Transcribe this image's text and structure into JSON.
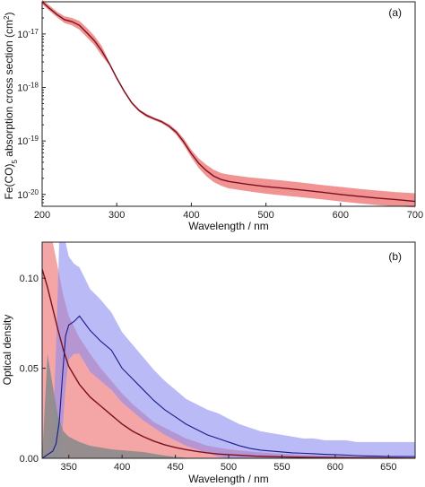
{
  "chart_data": [
    {
      "type": "line",
      "panel_label": "(a)",
      "xlabel": "Wavelength / nm",
      "ylabel": "Fe(CO)5 absorption cross section (cm2)",
      "xlim": [
        200,
        700
      ],
      "ylim": [
        6e-21,
        4e-17
      ],
      "y_scale": "log",
      "x_ticks": [
        200,
        300,
        400,
        500,
        600,
        700
      ],
      "x_tick_labels": [
        "200",
        "300",
        "400",
        "500",
        "600",
        "700"
      ],
      "y_ticks": [
        1e-17,
        1e-18,
        1e-19,
        1e-20
      ],
      "y_tick_labels": [
        "10-17",
        "10-18",
        "10-19",
        "10-20"
      ],
      "colors": {
        "line": "#7a0f1e",
        "band": "#f08080"
      },
      "series": [
        {
          "x": [
            200,
            210,
            220,
            230,
            240,
            250,
            260,
            270,
            280,
            290,
            300,
            310,
            320,
            330,
            340,
            350,
            360,
            370,
            380,
            390,
            400,
            410,
            420,
            430,
            440,
            450,
            475,
            500,
            525,
            550,
            575,
            600,
            625,
            650,
            675,
            700
          ],
          "y": [
            4e-17,
            3e-17,
            2.3e-17,
            1.85e-17,
            1.7e-17,
            1.45e-17,
            1.05e-17,
            7.5e-18,
            4.8e-18,
            2.8e-18,
            1.5e-18,
            8.5e-19,
            5.2e-19,
            3.7e-19,
            3e-19,
            2.6e-19,
            2.3e-19,
            1.9e-19,
            1.45e-19,
            9.5e-20,
            5.8e-20,
            3.8e-20,
            2.8e-20,
            2.2e-20,
            1.9e-20,
            1.75e-20,
            1.55e-20,
            1.4e-20,
            1.3e-20,
            1.2e-20,
            1.1e-20,
            1e-20,
            9.2e-21,
            8.5e-21,
            8e-21,
            7.4e-21
          ],
          "lower": [
            3.6e-17,
            2.7e-17,
            2.05e-17,
            1.6e-17,
            1.45e-17,
            1.2e-17,
            8.6e-18,
            6.2e-18,
            3.9e-18,
            2.6e-18,
            1.4e-18,
            8e-19,
            4.9e-19,
            3.5e-19,
            2.8e-19,
            2.45e-19,
            2.15e-19,
            1.75e-19,
            1.3e-19,
            8.3e-20,
            4.9e-20,
            3.1e-20,
            2.2e-20,
            1.7e-20,
            1.45e-20,
            1.3e-20,
            1.15e-20,
            1.03e-20,
            9.5e-21,
            8.8e-21,
            8.1e-21,
            7.4e-21,
            6.8e-21,
            6.3e-21,
            6e-21,
            5.7e-21
          ],
          "upper": [
            4.4e-17,
            3.4e-17,
            2.6e-17,
            2.15e-17,
            2e-17,
            1.75e-17,
            1.3e-17,
            9.2e-18,
            5.9e-18,
            3e-18,
            1.6e-18,
            9e-19,
            5.5e-19,
            3.9e-19,
            3.2e-19,
            2.75e-19,
            2.45e-19,
            2.05e-19,
            1.6e-19,
            1.1e-19,
            6.8e-20,
            4.7e-20,
            3.6e-20,
            2.9e-20,
            2.5e-20,
            2.35e-20,
            2.1e-20,
            1.95e-20,
            1.8e-20,
            1.65e-20,
            1.5e-20,
            1.38e-20,
            1.27e-20,
            1.18e-20,
            1.1e-20,
            1.05e-20
          ]
        }
      ]
    },
    {
      "type": "area",
      "panel_label": "(b)",
      "xlabel": "Wavelength / nm",
      "ylabel": "Optical density",
      "xlim": [
        325,
        675
      ],
      "ylim": [
        0,
        0.12
      ],
      "x_ticks": [
        350,
        400,
        450,
        500,
        550,
        600,
        650
      ],
      "x_tick_labels": [
        "350",
        "400",
        "450",
        "500",
        "550",
        "600",
        "650"
      ],
      "y_ticks": [
        0,
        0.05,
        0.1
      ],
      "y_tick_labels": [
        "0.00",
        "0.05",
        "0.10"
      ],
      "colors": {
        "red_line": "#7a0f1e",
        "red_band": "#f08080",
        "blue_line": "#1a1a8c",
        "blue_band": "#8c8cf0",
        "gray": "#8c8c8c"
      },
      "series": [
        {
          "x": [
            325,
            330,
            335,
            340,
            345,
            350,
            360,
            370,
            380,
            390,
            400,
            410,
            420,
            430,
            440,
            450,
            460,
            470,
            480,
            490,
            500,
            525,
            550,
            575,
            600,
            625,
            650,
            675
          ],
          "y": [
            0.105,
            0.095,
            0.083,
            0.071,
            0.06,
            0.051,
            0.041,
            0.034,
            0.029,
            0.024,
            0.019,
            0.015,
            0.012,
            0.0095,
            0.0075,
            0.006,
            0.0048,
            0.0038,
            0.003,
            0.0024,
            0.002,
            0.0012,
            0.0008,
            0.0005,
            0.0004,
            0.0003,
            0.0002,
            0.0001
          ],
          "lower": [
            0.0,
            0.0,
            0.0,
            0.0,
            0.0,
            0.0,
            0.0,
            0.0,
            0.0,
            0.0,
            0.0,
            0.0,
            0.0,
            0.0,
            0.0,
            0.0,
            0.0,
            0.0,
            0.0,
            0.0,
            0.0,
            0.0,
            0.0,
            0.0,
            0.0,
            0.0,
            0.0,
            0.0
          ],
          "upper": [
            0.12,
            0.12,
            0.12,
            0.105,
            0.09,
            0.079,
            0.067,
            0.058,
            0.05,
            0.043,
            0.036,
            0.03,
            0.025,
            0.02,
            0.017,
            0.014,
            0.011,
            0.009,
            0.007,
            0.006,
            0.005,
            0.0035,
            0.0025,
            0.0018,
            0.0013,
            0.001,
            0.0008,
            0.0006
          ]
        },
        {
          "x": [
            325,
            330,
            335,
            338,
            341,
            344,
            347,
            350,
            355,
            360,
            365,
            370,
            380,
            390,
            400,
            410,
            420,
            430,
            440,
            450,
            460,
            470,
            480,
            490,
            500,
            510,
            520,
            530,
            540,
            550,
            560,
            570,
            580,
            590,
            600,
            610,
            620,
            630,
            640,
            650,
            660,
            675
          ],
          "y": [
            0.0,
            0.002,
            0.004,
            0.008,
            0.02,
            0.045,
            0.068,
            0.074,
            0.076,
            0.079,
            0.075,
            0.071,
            0.065,
            0.06,
            0.05,
            0.044,
            0.038,
            0.032,
            0.027,
            0.023,
            0.019,
            0.016,
            0.013,
            0.011,
            0.009,
            0.007,
            0.0055,
            0.0045,
            0.004,
            0.0035,
            0.003,
            0.0028,
            0.0025,
            0.0022,
            0.002,
            0.0018,
            0.0015,
            0.0013,
            0.0012,
            0.001,
            0.001,
            0.001
          ],
          "lower": [
            0.0,
            0.0,
            0.0,
            0.0,
            0.0,
            0.015,
            0.04,
            0.055,
            0.058,
            0.058,
            0.053,
            0.048,
            0.043,
            0.038,
            0.031,
            0.026,
            0.021,
            0.017,
            0.013,
            0.01,
            0.007,
            0.005,
            0.003,
            0.001,
            0.0,
            0.0,
            0.0,
            0.0,
            0.0,
            0.0,
            0.0,
            0.0,
            0.0,
            0.0,
            0.0,
            0.0,
            0.0,
            0.0,
            0.0,
            0.0,
            0.0,
            0.0
          ],
          "upper": [
            0.0,
            0.005,
            0.015,
            0.06,
            0.12,
            0.12,
            0.12,
            0.112,
            0.108,
            0.106,
            0.1,
            0.094,
            0.088,
            0.081,
            0.07,
            0.063,
            0.056,
            0.049,
            0.043,
            0.038,
            0.033,
            0.03,
            0.027,
            0.025,
            0.022,
            0.019,
            0.017,
            0.015,
            0.014,
            0.013,
            0.012,
            0.011,
            0.011,
            0.01,
            0.01,
            0.01,
            0.009,
            0.009,
            0.009,
            0.009,
            0.009,
            0.009
          ]
        },
        {
          "x": [
            325,
            330,
            335,
            340,
            345,
            350,
            360,
            370,
            380,
            390,
            400,
            410,
            420,
            430,
            440,
            450,
            460,
            470
          ],
          "y": [
            0.0,
            0.058,
            0.04,
            0.023,
            0.015,
            0.012,
            0.009,
            0.007,
            0.006,
            0.005,
            0.0045,
            0.004,
            0.0035,
            0.0025,
            0.0015,
            0.0008,
            0.0003,
            0.0
          ]
        }
      ]
    }
  ]
}
